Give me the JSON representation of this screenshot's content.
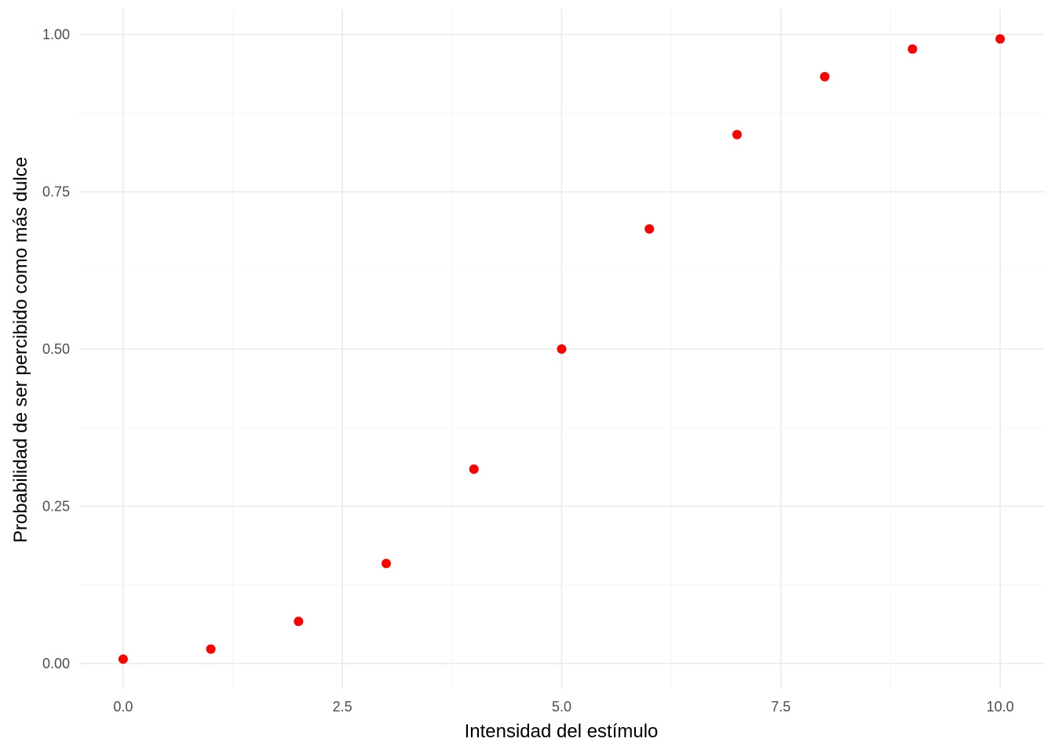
{
  "chart_data": {
    "type": "scatter",
    "title": "",
    "xlabel": "Intensidad del estímulo",
    "ylabel": "Probabilidad de ser percibido como más dulce",
    "xlim": [
      -0.5,
      10.5
    ],
    "ylim": [
      -0.04,
      1.04
    ],
    "x_ticks": [
      "0.0",
      "2.5",
      "5.0",
      "7.5",
      "10.0"
    ],
    "y_ticks": [
      "0.00",
      "0.25",
      "0.50",
      "0.75",
      "1.00"
    ],
    "grid": true,
    "point_color": "#ff0000",
    "points": [
      {
        "x": 0,
        "y": 0.007
      },
      {
        "x": 1,
        "y": 0.023
      },
      {
        "x": 2,
        "y": 0.067
      },
      {
        "x": 3,
        "y": 0.159
      },
      {
        "x": 4,
        "y": 0.309
      },
      {
        "x": 5,
        "y": 0.5
      },
      {
        "x": 6,
        "y": 0.691
      },
      {
        "x": 7,
        "y": 0.841
      },
      {
        "x": 8,
        "y": 0.933
      },
      {
        "x": 9,
        "y": 0.977
      },
      {
        "x": 10,
        "y": 0.993
      }
    ]
  }
}
